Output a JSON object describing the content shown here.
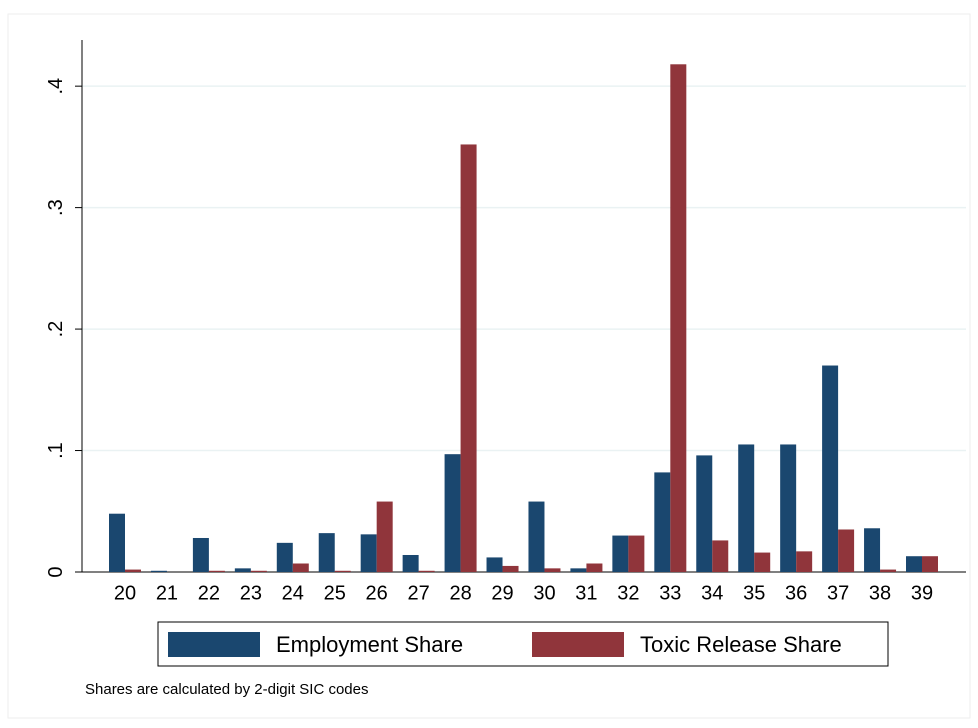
{
  "chart_data": {
    "type": "bar",
    "categories": [
      "20",
      "21",
      "22",
      "23",
      "24",
      "25",
      "26",
      "27",
      "28",
      "29",
      "30",
      "31",
      "32",
      "33",
      "34",
      "35",
      "36",
      "37",
      "38",
      "39"
    ],
    "series": [
      {
        "name": "Employment Share",
        "color": "#1a476f",
        "values": [
          0.048,
          0.001,
          0.028,
          0.003,
          0.024,
          0.032,
          0.031,
          0.014,
          0.097,
          0.012,
          0.058,
          0.003,
          0.03,
          0.082,
          0.096,
          0.105,
          0.105,
          0.17,
          0.036,
          0.013
        ]
      },
      {
        "name": "Toxic Release Share",
        "color": "#90353b",
        "values": [
          0.002,
          0,
          0.001,
          0.001,
          0.007,
          0.001,
          0.058,
          0.001,
          0.352,
          0.005,
          0.003,
          0.007,
          0.03,
          0.418,
          0.026,
          0.016,
          0.017,
          0.035,
          0.002,
          0.013
        ]
      }
    ],
    "ylim": [
      0,
      0.438
    ],
    "yticks": [
      0,
      {
        "value": 0.1,
        "label": ".1"
      },
      {
        "value": 0.2,
        "label": ".2"
      },
      {
        "value": 0.3,
        "label": ".3"
      },
      {
        "value": 0.4,
        "label": ".4"
      }
    ],
    "grid": true,
    "note": "Shares are calculated by 2-digit SIC codes"
  }
}
